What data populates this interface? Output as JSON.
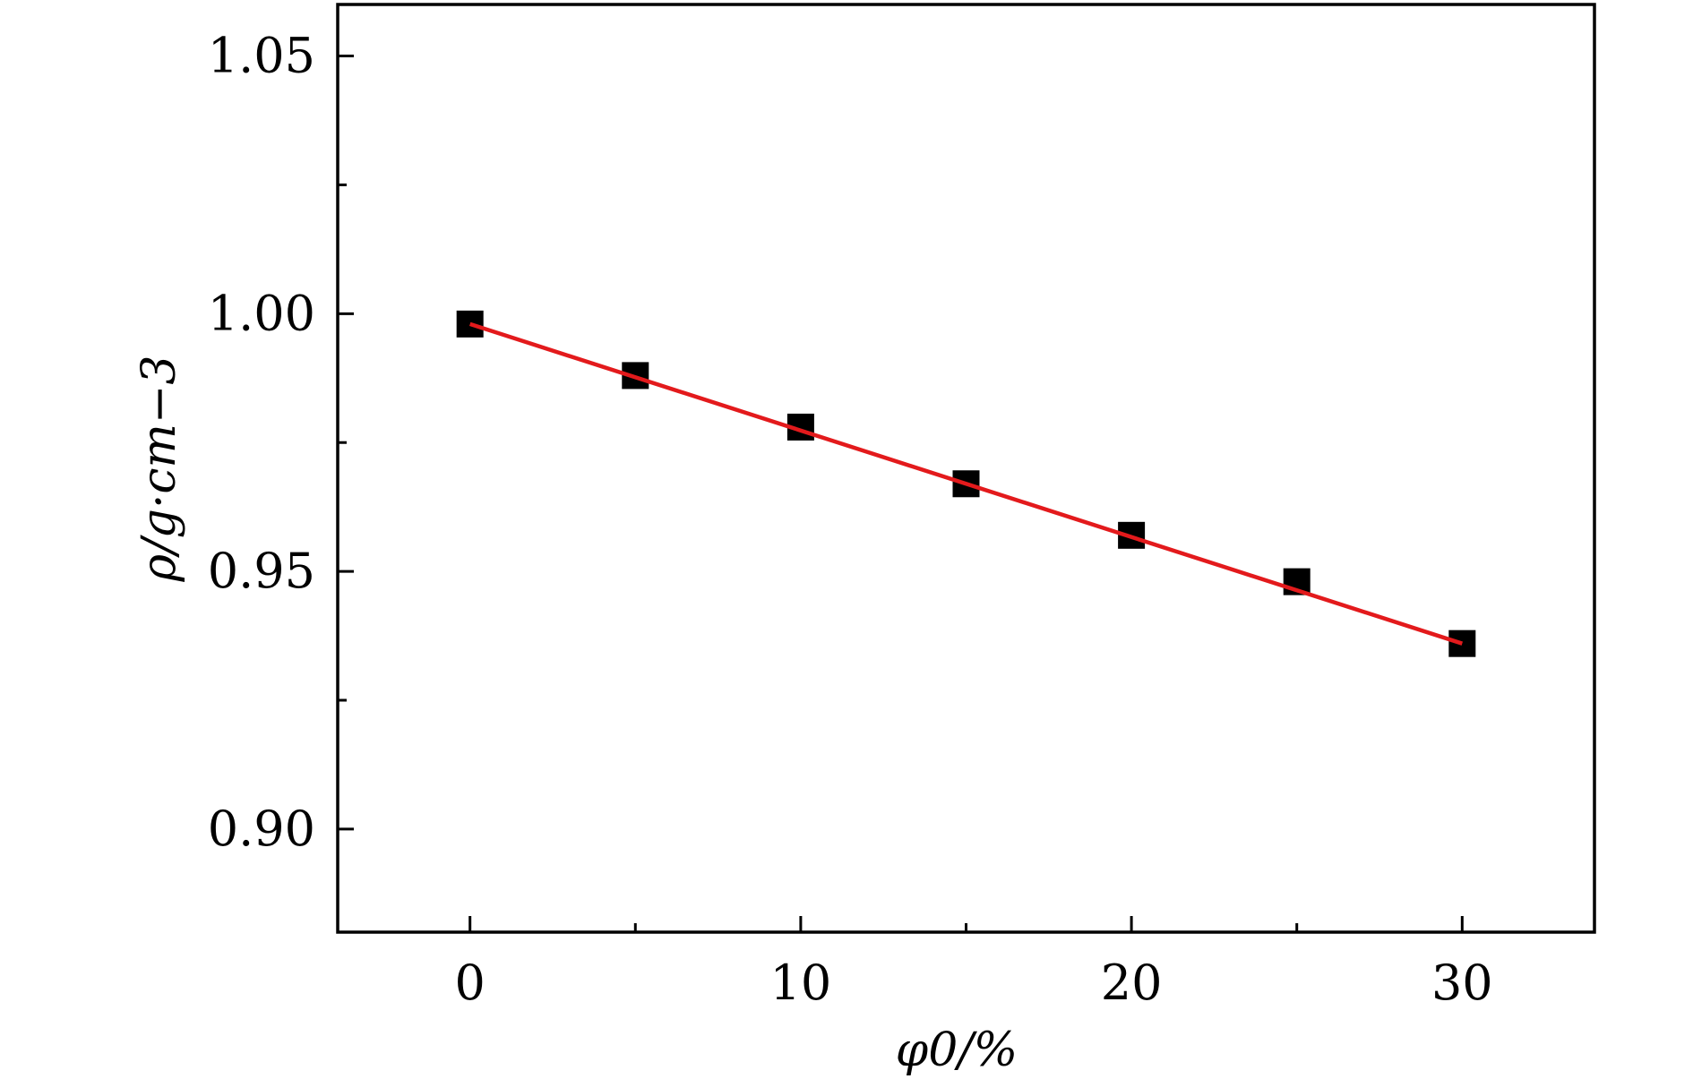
{
  "chart_data": {
    "type": "scatter",
    "xlabel": "φ0/%",
    "ylabel": "ρ/g·cm−3",
    "xlim": [
      -4,
      34
    ],
    "ylim": [
      0.88,
      1.06
    ],
    "xticks": [
      0,
      10,
      20,
      30
    ],
    "xtick_labels": [
      "0",
      "10",
      "20",
      "30"
    ],
    "x_minor_ticks": [
      5,
      15,
      25
    ],
    "yticks": [
      0.9,
      0.95,
      1.0,
      1.05
    ],
    "ytick_labels": [
      "0.90",
      "0.95",
      "1.00",
      "1.05"
    ],
    "y_minor_ticks": [
      0.925,
      0.975,
      1.025
    ],
    "grid": false,
    "series": [
      {
        "marker": "square",
        "color": "#000000",
        "x": [
          0,
          5,
          10,
          15,
          20,
          25,
          30
        ],
        "y": [
          0.998,
          0.988,
          0.978,
          0.967,
          0.957,
          0.948,
          0.936
        ]
      }
    ],
    "fit_line": {
      "color": "#e31a1c",
      "x": [
        0,
        30
      ],
      "y": [
        0.998,
        0.936
      ]
    }
  }
}
